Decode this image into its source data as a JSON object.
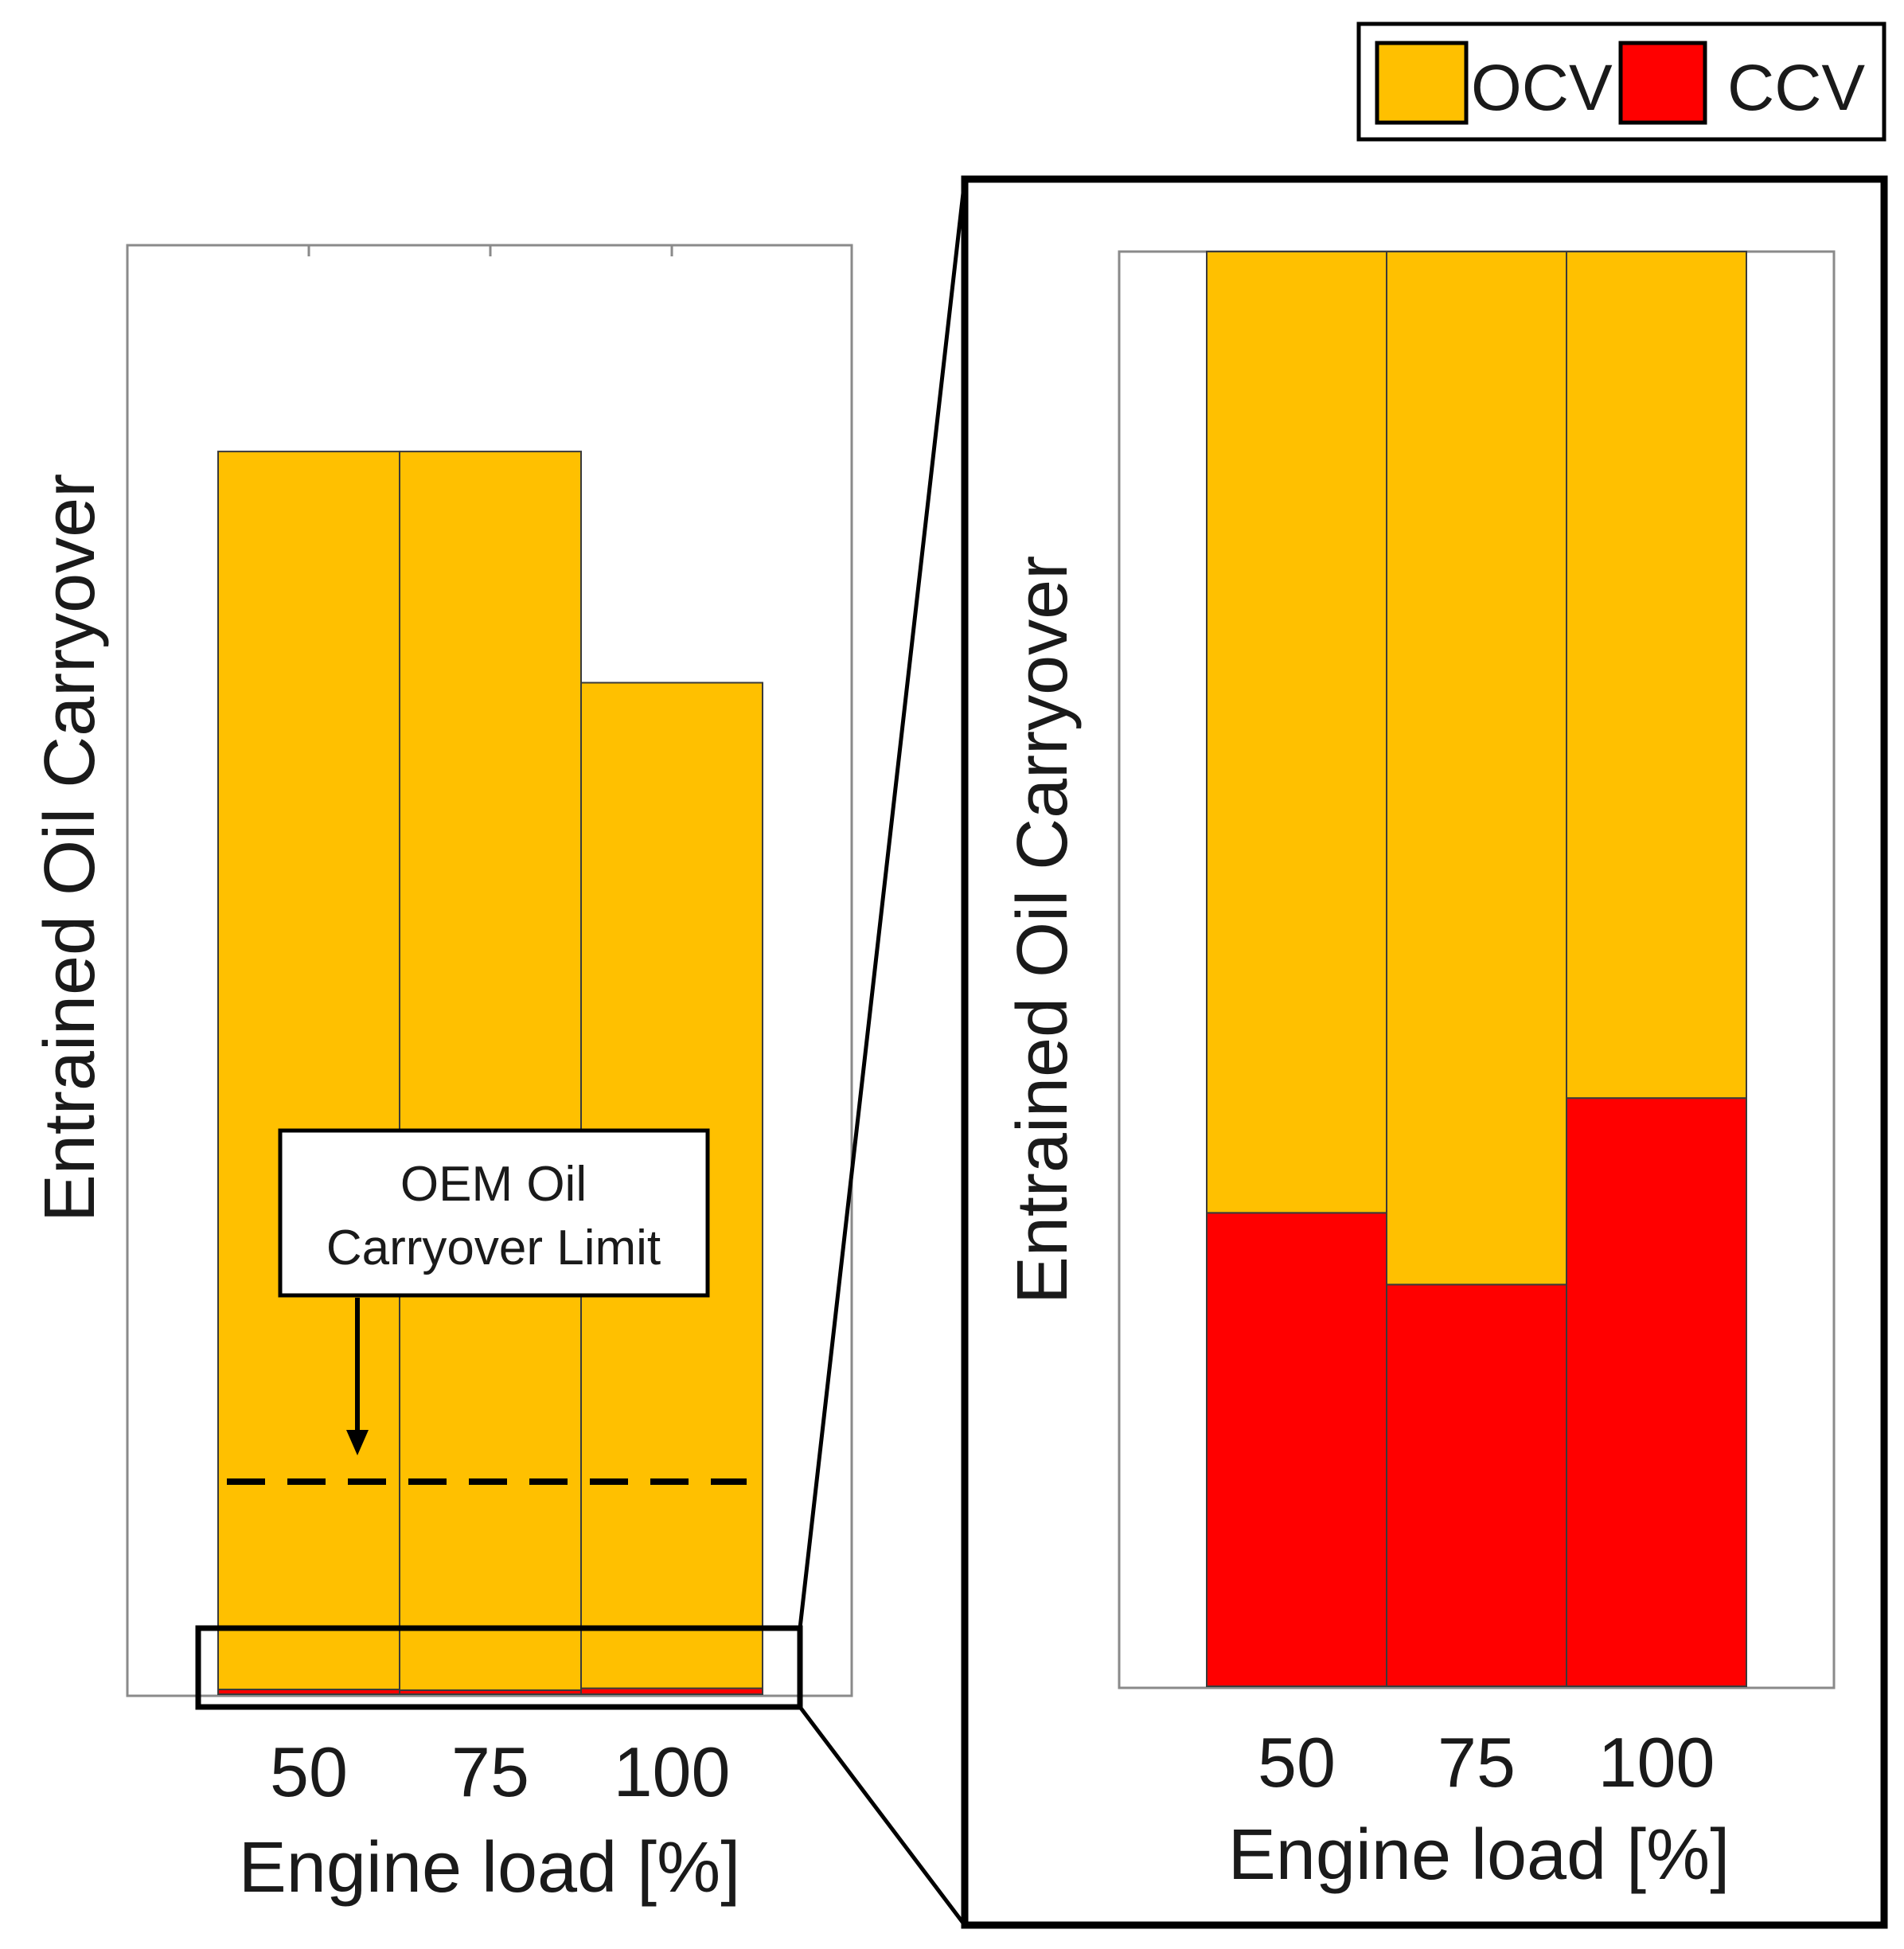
{
  "legend": {
    "items": [
      {
        "label": "OCV",
        "color": "#FFC000"
      },
      {
        "label": "CCV",
        "color": "#FF0000"
      }
    ],
    "position": "top-right"
  },
  "annotation": {
    "line1": "OEM Oil",
    "line2": "Carryover Limit"
  },
  "chart_data": [
    {
      "type": "bar",
      "name": "full-view",
      "xlabel": "Engine load [%]",
      "ylabel": "Entrained Oil Carryover",
      "categories": [
        "50",
        "75",
        "100"
      ],
      "series": [
        {
          "name": "CCV",
          "values": [
            0.33,
            0.28,
            0.41
          ],
          "color": "#FF0000"
        },
        {
          "name": "OCV",
          "values": [
            85.67,
            85.72,
            69.59
          ],
          "color": "#FFC000"
        }
      ],
      "stacked": true,
      "ylim": [
        0,
        100
      ],
      "reference_line": {
        "label": "OEM Oil Carryover Limit",
        "value": 15,
        "style": "dashed"
      },
      "y_ticks_shown": false
    },
    {
      "type": "bar",
      "name": "zoomed-view",
      "xlabel": "Engine load [%]",
      "ylabel": "Entrained Oil Carryover",
      "categories": [
        "50",
        "75",
        "100"
      ],
      "series": [
        {
          "name": "CCV",
          "values": [
            0.33,
            0.28,
            0.41
          ],
          "color": "#FF0000"
        },
        {
          "name": "OCV",
          "values": [
            0.67,
            0.72,
            0.59
          ],
          "color": "#FFC000"
        }
      ],
      "stacked": true,
      "ylim": [
        0,
        1
      ],
      "y_ticks_shown": false
    }
  ]
}
